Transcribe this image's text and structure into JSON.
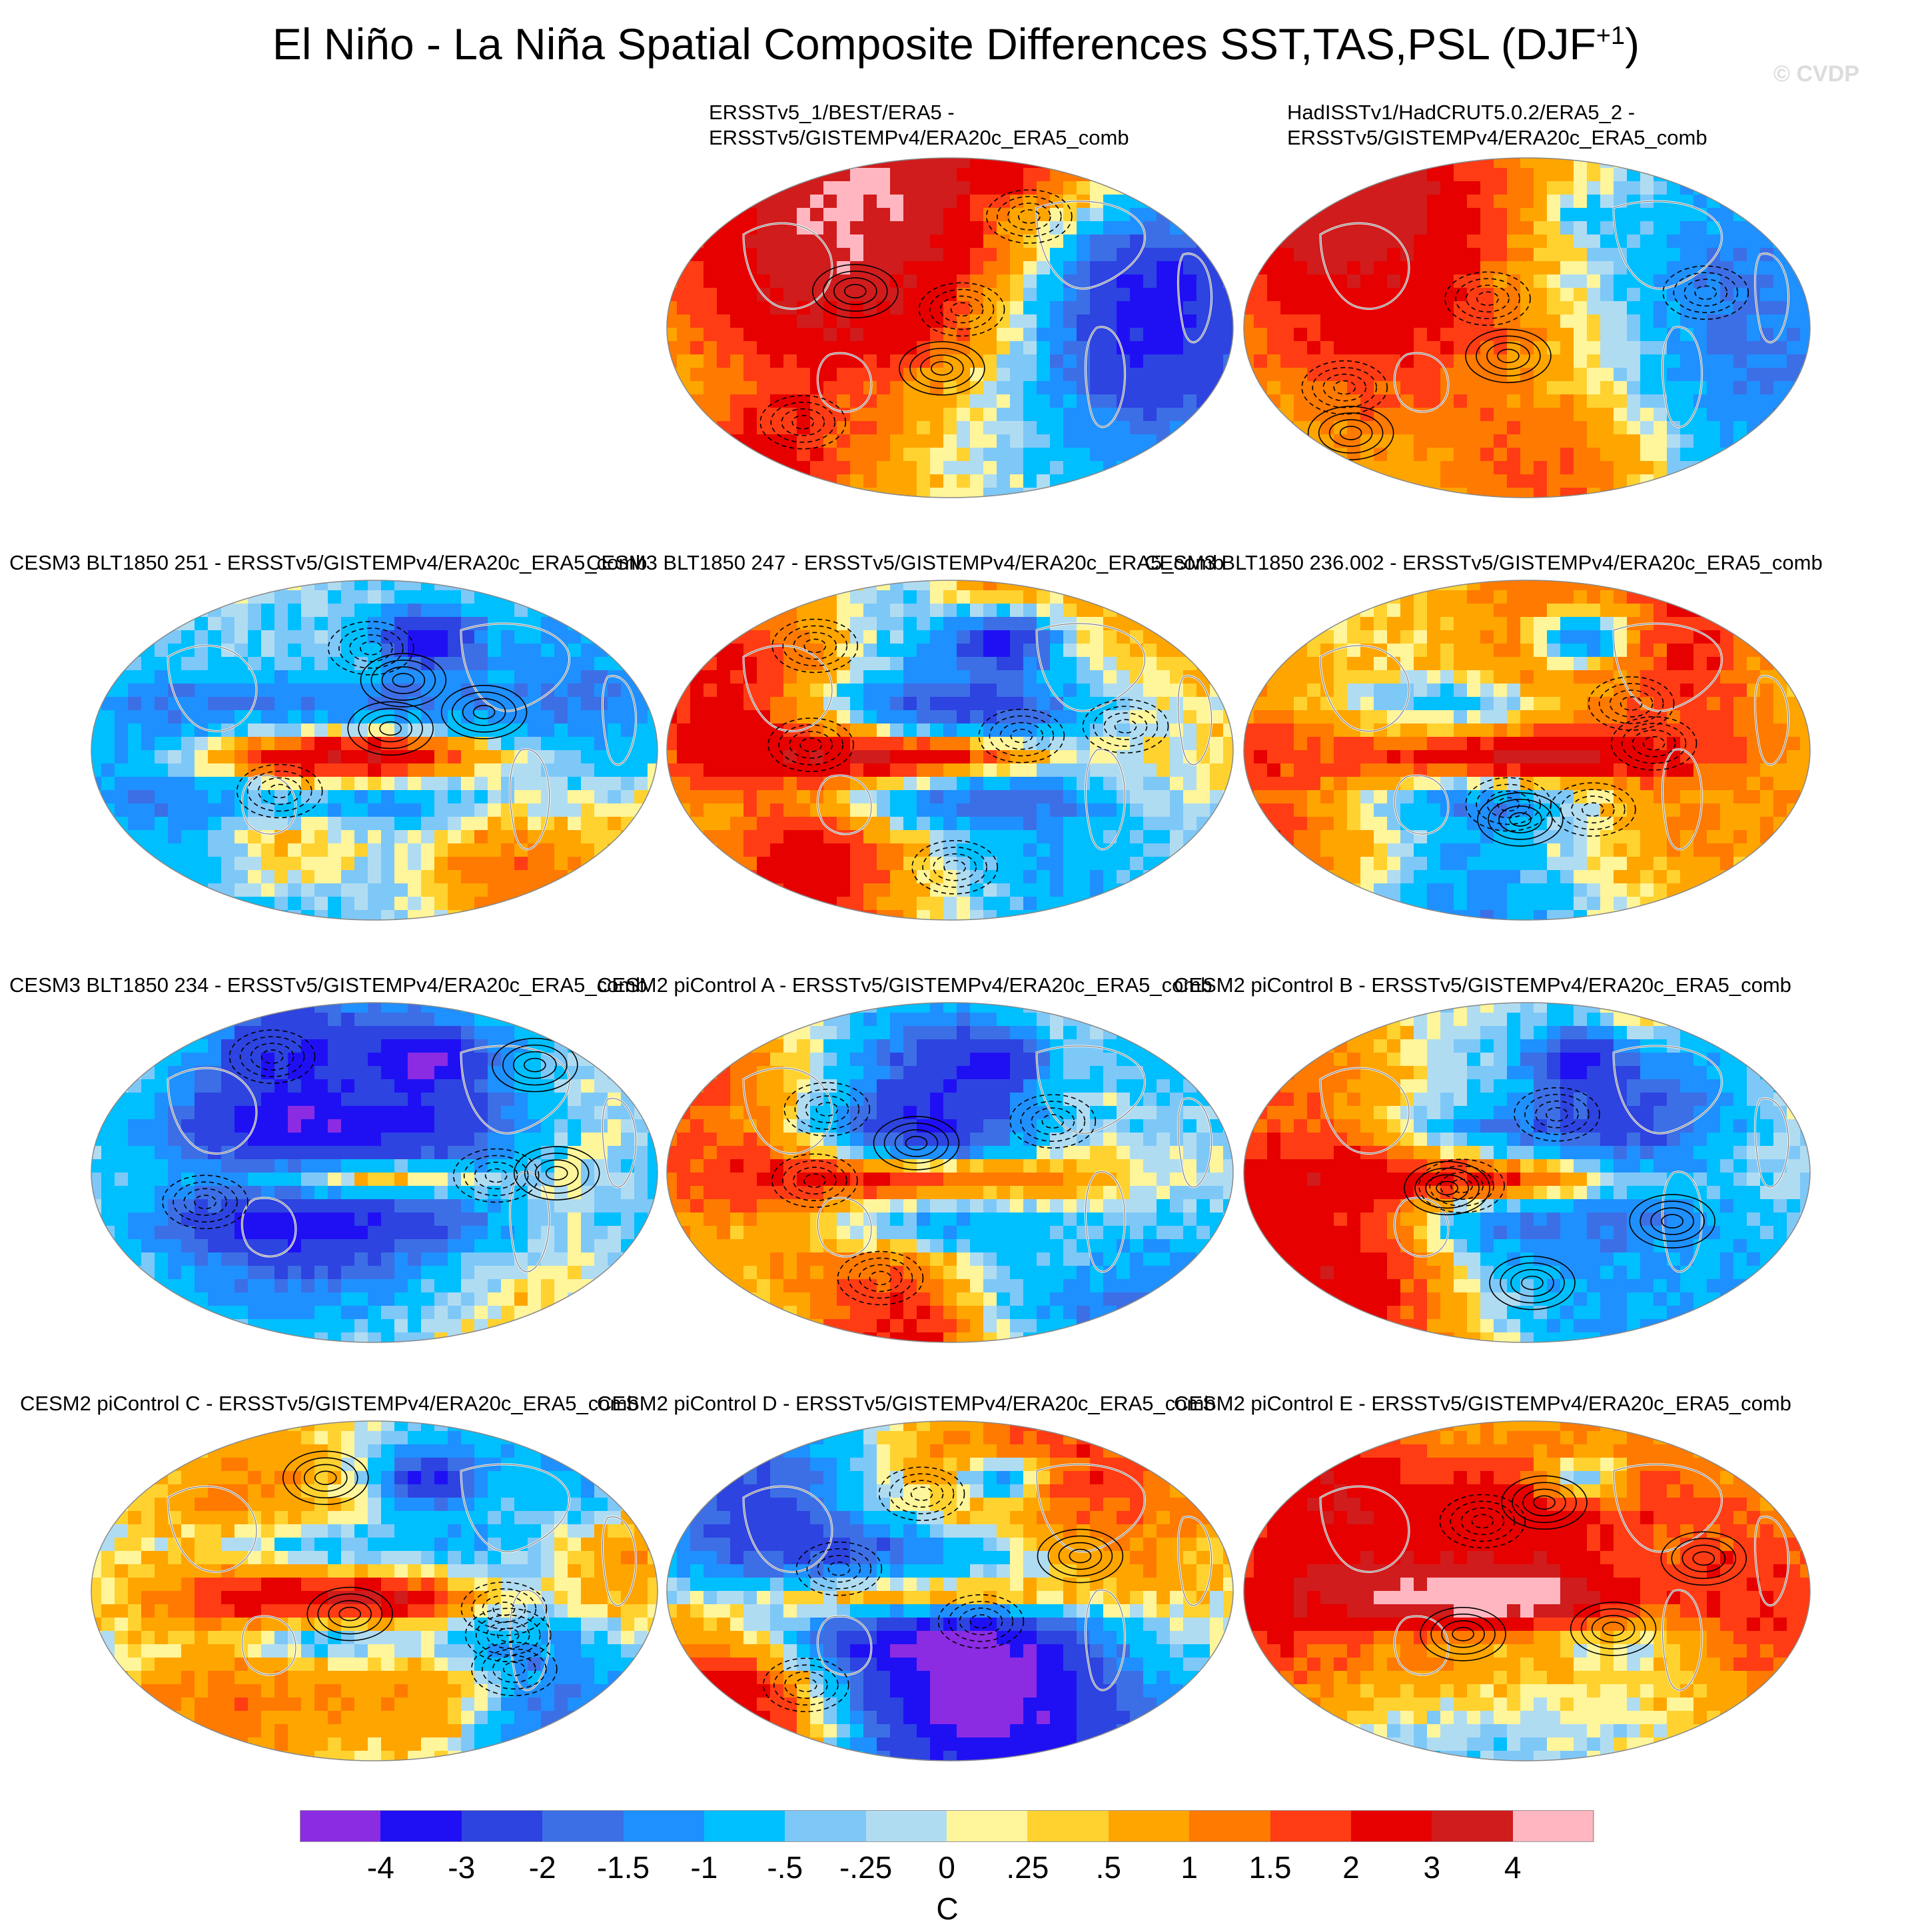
{
  "title_main": "El Niño - La Niña Spatial Composite Differences SST,TAS,PSL (DJF",
  "title_sup": "+1",
  "title_end": ")",
  "copyright": "© CVDP",
  "panels": [
    {
      "line1": "ERSSTv5_1/BEST/ERA5 -",
      "line2": "ERSSTv5/GISTEMPv4/ERA20c_ERA5_comb",
      "strength": 0.35,
      "pattern": "obs"
    },
    {
      "line1": "HadISSTv1/HadCRUT5.0.2/ERA5_2 -",
      "line2": "ERSSTv5/GISTEMPv4/ERA20c_ERA5_comb",
      "strength": 0.35,
      "pattern": "obs"
    },
    {
      "line1": "CESM3 BLT1850 251 - ERSSTv5/GISTEMPv4/ERA20c_ERA5_comb",
      "line2": "",
      "strength": 1.0,
      "pattern": "model"
    },
    {
      "line1": "CESM3 BLT1850 247 - ERSSTv5/GISTEMPv4/ERA20c_ERA5_comb",
      "line2": "",
      "strength": 1.0,
      "pattern": "model"
    },
    {
      "line1": "CESM3 BLT1850 236.002 - ERSSTv5/GISTEMPv4/ERA20c_ERA5_comb",
      "line2": "",
      "strength": 0.9,
      "pattern": "model"
    },
    {
      "line1": "CESM3 BLT1850 234 - ERSSTv5/GISTEMPv4/ERA20c_ERA5_comb",
      "line2": "",
      "strength": 0.9,
      "pattern": "model"
    },
    {
      "line1": "CESM2 piControl A - ERSSTv5/GISTEMPv4/ERA20c_ERA5_comb",
      "line2": "",
      "strength": 0.8,
      "pattern": "model"
    },
    {
      "line1": "CESM2 piControl B - ERSSTv5/GISTEMPv4/ERA20c_ERA5_comb",
      "line2": "",
      "strength": 0.75,
      "pattern": "model"
    },
    {
      "line1": "CESM2 piControl C - ERSSTv5/GISTEMPv4/ERA20c_ERA5_comb",
      "line2": "",
      "strength": 0.9,
      "pattern": "model"
    },
    {
      "line1": "CESM2 piControl D - ERSSTv5/GISTEMPv4/ERA20c_ERA5_comb",
      "line2": "",
      "strength": 0.85,
      "pattern": "model"
    },
    {
      "line1": "CESM2 piControl E - ERSSTv5/GISTEMPv4/ERA20c_ERA5_comb",
      "line2": "",
      "strength": 0.75,
      "pattern": "model"
    }
  ],
  "colorbar": {
    "colors": [
      "#8b2be2",
      "#1f10f4",
      "#2d44e0",
      "#3c6fe6",
      "#1e90ff",
      "#00bfff",
      "#7ec8f8",
      "#b0dcf2",
      "#fff59a",
      "#ffd230",
      "#ffa500",
      "#ff7a00",
      "#ff3c14",
      "#e60000",
      "#d01c1c",
      "#ffb6c1"
    ],
    "labels": [
      "-4",
      "-3",
      "-2",
      "-1.5",
      "-1",
      "-.5",
      "-.25",
      "0",
      ".25",
      ".5",
      "1",
      "1.5",
      "2",
      "3",
      "4"
    ],
    "units": "C"
  }
}
